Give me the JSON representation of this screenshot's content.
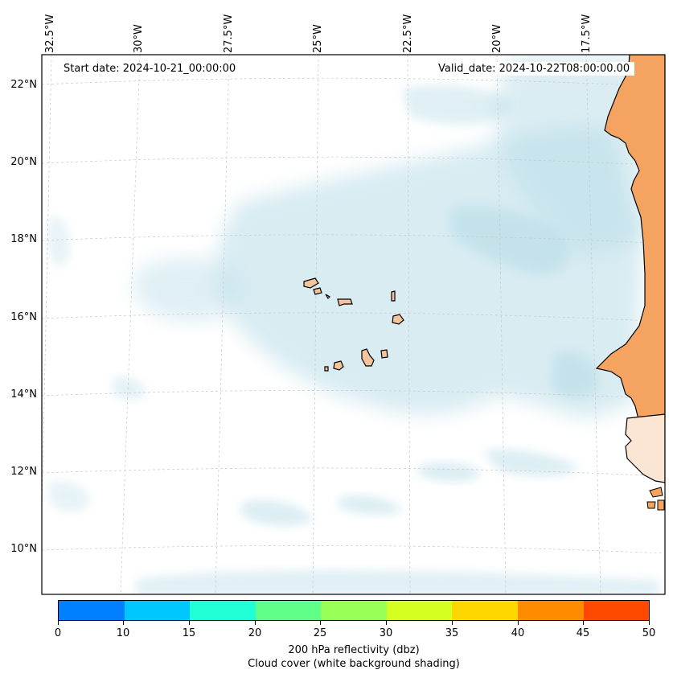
{
  "map": {
    "start_date": "Start date: 2024-10-21_00:00:00",
    "valid_date": "Valid_date: 2024-10-22T08:00:00.00",
    "longitude_labels": [
      "32.5°W",
      "30°W",
      "27.5°W",
      "25°W",
      "22.5°W",
      "20°W",
      "17.5°W"
    ],
    "latitude_labels": [
      "22°N",
      "20°N",
      "18°N",
      "16°N",
      "14°N",
      "12°N",
      "10°N"
    ],
    "land_color": "#f4a460",
    "cloud_color": "#b9dde8"
  },
  "colorbar": {
    "ticks": [
      "0",
      "10",
      "15",
      "20",
      "25",
      "30",
      "35",
      "40",
      "45",
      "50"
    ],
    "colors": [
      "#0080ff",
      "#00c8ff",
      "#21ffd6",
      "#5fff8a",
      "#97ff55",
      "#d4ff21",
      "#ffd700",
      "#ff8c00",
      "#ff4800"
    ],
    "label_line1": "200 hPa reflectivity (dbz)",
    "label_line2": "Cloud cover (white background shading)"
  }
}
